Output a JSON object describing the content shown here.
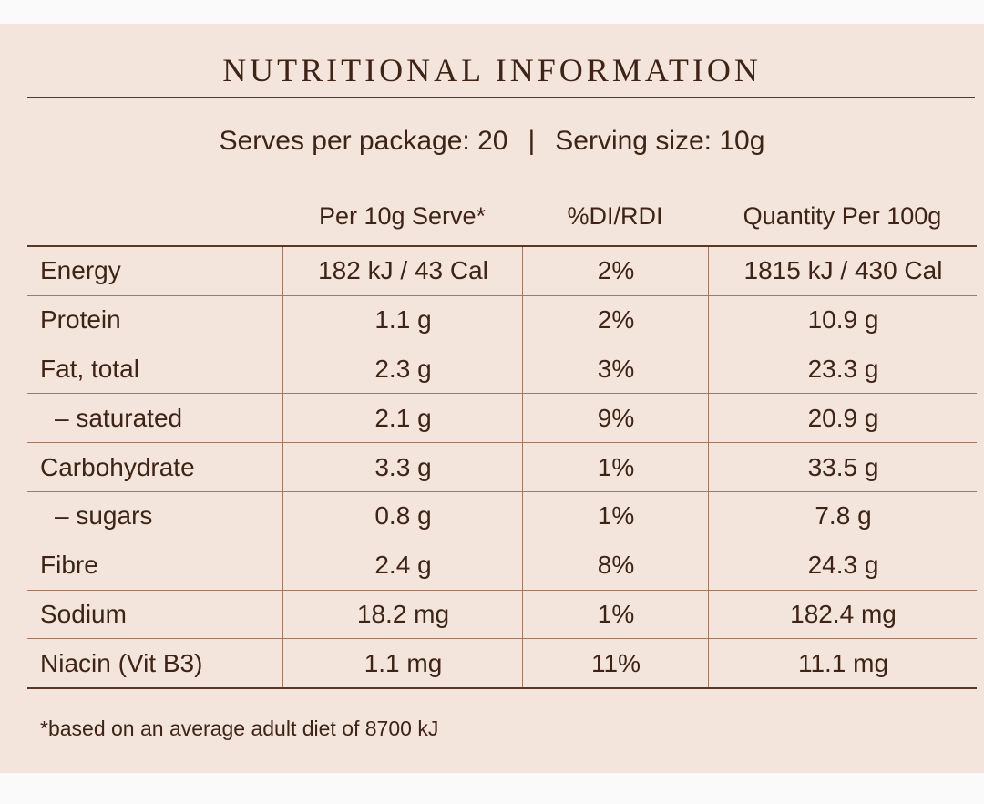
{
  "title": "NUTRITIONAL INFORMATION",
  "serves": {
    "servings_text": "Serves per package: 20",
    "separator": "|",
    "size_text": "Serving size: 10g"
  },
  "headers": [
    "",
    "Per 10g Serve*",
    "%DI/RDI",
    "Quantity Per 100g"
  ],
  "rows": [
    {
      "nutrient": "Energy",
      "per_serve": "182 kJ / 43 Cal",
      "di": "2%",
      "per_100g": "1815 kJ / 430 Cal"
    },
    {
      "nutrient": "Protein",
      "per_serve": "1.1 g",
      "di": "2%",
      "per_100g": "10.9 g"
    },
    {
      "nutrient": "Fat, total",
      "per_serve": "2.3 g",
      "di": "3%",
      "per_100g": "23.3 g"
    },
    {
      "nutrient": "– saturated",
      "per_serve": "2.1 g",
      "di": "9%",
      "per_100g": "20.9 g"
    },
    {
      "nutrient": "Carbohydrate",
      "per_serve": "3.3 g",
      "di": "1%",
      "per_100g": "33.5 g"
    },
    {
      "nutrient": "– sugars",
      "per_serve": "0.8 g",
      "di": "1%",
      "per_100g": "7.8 g"
    },
    {
      "nutrient": "Fibre",
      "per_serve": "2.4 g",
      "di": "8%",
      "per_100g": "24.3 g"
    },
    {
      "nutrient": "Sodium",
      "per_serve": "18.2 mg",
      "di": "1%",
      "per_100g": "182.4 mg"
    },
    {
      "nutrient": "Niacin (Vit B3)",
      "per_serve": "1.1 mg",
      "di": "11%",
      "per_100g": "11.1 mg"
    }
  ],
  "footnote": "*based on an average adult diet of 8700 kJ"
}
